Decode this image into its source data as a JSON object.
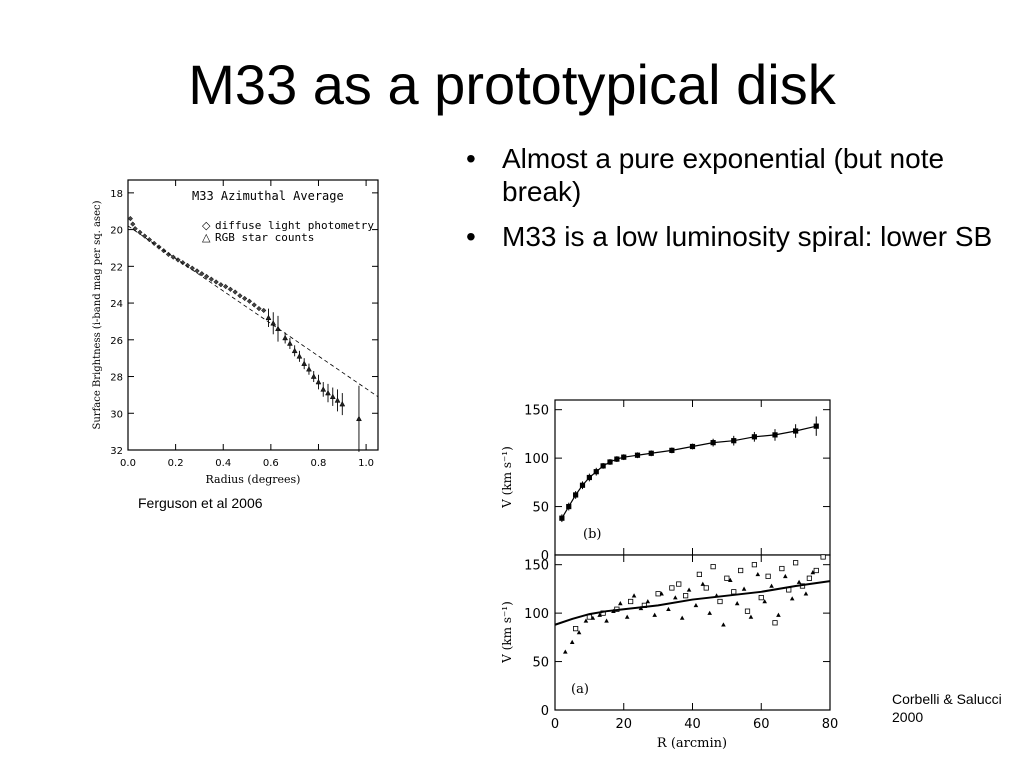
{
  "slide": {
    "title": "M33 as a prototypical disk",
    "bullets": [
      "Almost a pure exponential (but note break)",
      "M33 is a low luminosity spiral: lower SB"
    ],
    "caption_left": "Ferguson et al 2006",
    "caption_right": "Corbelli & Salucci 2000"
  },
  "chart_data": [
    {
      "type": "scatter",
      "title": "M33 Azimuthal Average",
      "xlabel": "Radius (degrees)",
      "ylabel": "Surface Brightness (i-band mag per sq. asec)",
      "xlim": [
        0.0,
        1.05
      ],
      "ylim": [
        32,
        17.3
      ],
      "y_inverted": true,
      "x_ticks": [
        "0.0",
        "0.2",
        "0.4",
        "0.6",
        "0.8",
        "1.0"
      ],
      "y_ticks": [
        "18",
        "20",
        "22",
        "24",
        "26",
        "28",
        "30",
        "32"
      ],
      "legend": [
        "diffuse light photometry",
        "RGB star counts"
      ],
      "legend_position": "top-right",
      "series": [
        {
          "name": "diffuse light photometry",
          "marker": "diamond",
          "x": [
            0.01,
            0.02,
            0.03,
            0.05,
            0.07,
            0.09,
            0.11,
            0.13,
            0.15,
            0.17,
            0.19,
            0.21,
            0.23,
            0.25,
            0.27,
            0.29,
            0.31,
            0.33,
            0.35,
            0.37,
            0.39,
            0.41,
            0.43,
            0.45,
            0.47,
            0.49,
            0.51,
            0.53,
            0.55,
            0.57
          ],
          "y": [
            19.4,
            19.7,
            19.95,
            20.15,
            20.35,
            20.55,
            20.75,
            20.95,
            21.15,
            21.35,
            21.5,
            21.65,
            21.8,
            21.95,
            22.1,
            22.25,
            22.4,
            22.55,
            22.7,
            22.85,
            23.0,
            23.1,
            23.25,
            23.4,
            23.6,
            23.75,
            23.9,
            24.1,
            24.3,
            24.4
          ]
        },
        {
          "name": "RGB star counts",
          "marker": "triangle",
          "x": [
            0.59,
            0.61,
            0.63,
            0.66,
            0.68,
            0.7,
            0.72,
            0.74,
            0.76,
            0.78,
            0.8,
            0.82,
            0.84,
            0.86,
            0.88,
            0.9,
            0.97
          ],
          "y": [
            24.8,
            25.1,
            25.4,
            25.9,
            26.2,
            26.6,
            26.9,
            27.3,
            27.6,
            28.0,
            28.3,
            28.7,
            28.9,
            29.1,
            29.3,
            29.5,
            30.3
          ],
          "err": [
            0.5,
            0.6,
            0.7,
            0.3,
            0.3,
            0.3,
            0.3,
            0.3,
            0.3,
            0.3,
            0.4,
            0.4,
            0.5,
            0.5,
            0.6,
            0.6,
            1.8
          ]
        },
        {
          "name": "exponential fit",
          "style": "dashed",
          "x": [
            0.0,
            1.05
          ],
          "y": [
            19.8,
            29.1
          ]
        }
      ]
    },
    {
      "type": "line",
      "panel_label": "(b)",
      "xlabel": "",
      "ylabel": "V (km s⁻¹)",
      "xlim": [
        0,
        80
      ],
      "ylim": [
        0,
        160
      ],
      "y_ticks": [
        "0",
        "50",
        "100",
        "150"
      ],
      "series": [
        {
          "name": "",
          "marker": "square",
          "x": [
            2,
            4,
            6,
            8,
            10,
            12,
            14,
            16,
            18,
            20,
            24,
            28,
            34,
            40,
            46,
            52,
            58,
            64,
            70,
            76
          ],
          "y": [
            38,
            50,
            62,
            72,
            80,
            86,
            92,
            96,
            99,
            101,
            103,
            105,
            108,
            112,
            116,
            118,
            122,
            124,
            128,
            133
          ],
          "err": [
            4,
            4,
            4,
            4,
            4,
            4,
            3,
            3,
            3,
            3,
            3,
            3,
            3,
            3,
            4,
            5,
            5,
            6,
            7,
            10
          ]
        }
      ]
    },
    {
      "type": "scatter",
      "panel_label": "(a)",
      "xlabel": "R (arcmin)",
      "ylabel": "V (km s⁻¹)",
      "xlim": [
        0,
        80
      ],
      "ylim": [
        0,
        160
      ],
      "x_ticks": [
        "0",
        "20",
        "40",
        "60",
        "80"
      ],
      "y_ticks": [
        "0",
        "50",
        "100",
        "150"
      ],
      "series": [
        {
          "name": "",
          "marker": "triangle",
          "x": [
            3,
            5,
            7,
            9,
            11,
            13,
            15,
            17,
            19,
            21,
            23,
            25,
            27,
            29,
            31,
            33,
            35,
            37,
            39,
            41,
            43,
            45,
            47,
            49,
            51,
            53,
            55,
            57,
            59,
            61,
            63,
            65,
            67,
            69,
            71,
            73,
            75
          ],
          "y": [
            60,
            70,
            80,
            92,
            95,
            98,
            92,
            102,
            110,
            96,
            118,
            105,
            112,
            98,
            120,
            104,
            116,
            95,
            124,
            108,
            130,
            100,
            118,
            88,
            134,
            110,
            125,
            96,
            140,
            112,
            128,
            98,
            138,
            115,
            132,
            120,
            142
          ]
        },
        {
          "name": "",
          "marker": "square",
          "x": [
            6,
            10,
            14,
            18,
            22,
            26,
            30,
            34,
            36,
            38,
            42,
            44,
            46,
            48,
            50,
            52,
            54,
            56,
            58,
            60,
            62,
            64,
            66,
            68,
            70,
            72,
            74,
            76,
            78
          ],
          "y": [
            84,
            96,
            100,
            104,
            112,
            108,
            120,
            126,
            130,
            118,
            140,
            126,
            148,
            112,
            136,
            122,
            144,
            102,
            150,
            116,
            138,
            90,
            146,
            124,
            152,
            128,
            136,
            144,
            158
          ]
        },
        {
          "name": "fit",
          "style": "solid",
          "x": [
            0,
            5,
            10,
            15,
            20,
            30,
            40,
            50,
            60,
            70,
            80
          ],
          "y": [
            88,
            94,
            99,
            102,
            104,
            108,
            114,
            118,
            122,
            128,
            133
          ]
        }
      ]
    }
  ]
}
